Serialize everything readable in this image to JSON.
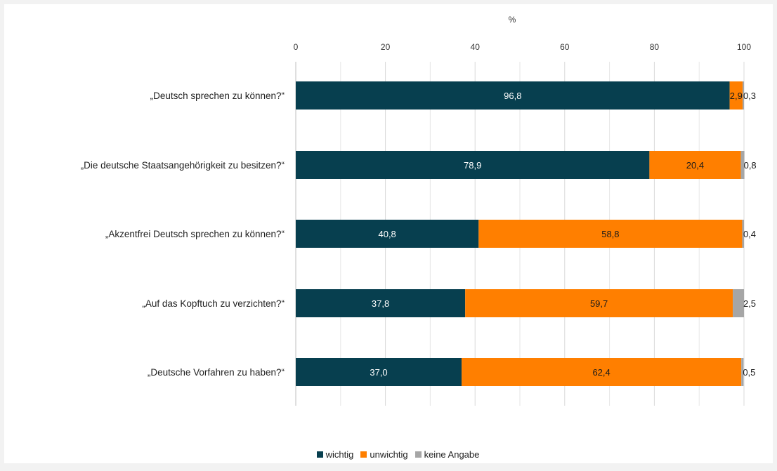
{
  "chart_data": {
    "type": "bar",
    "orientation": "horizontal",
    "stacked": true,
    "axis_title": "%",
    "xlim": [
      0,
      100
    ],
    "ticks": [
      "0",
      "20",
      "40",
      "60",
      "80",
      "100"
    ],
    "tick_values": [
      0,
      20,
      40,
      60,
      80,
      100
    ],
    "grid": true,
    "legend_position": "bottom",
    "categories": [
      "„Deutsch sprechen zu können?“",
      "„Die deutsche Staatsangehörigkeit zu besitzen?“",
      "„Akzentfrei Deutsch sprechen zu können?“",
      "„Auf das Kopftuch zu verzichten?“",
      "„Deutsche Vorfahren zu haben?“"
    ],
    "series": [
      {
        "name": "wichtig",
        "color": "#073f4f",
        "values": [
          96.8,
          78.9,
          40.8,
          37.8,
          37.0
        ],
        "labels": [
          "96,8",
          "78,9",
          "40,8",
          "37,8",
          "37,0"
        ]
      },
      {
        "name": "unwichtig",
        "color": "#ff7f00",
        "values": [
          2.9,
          20.4,
          58.8,
          59.7,
          62.4
        ],
        "labels": [
          "2,9",
          "20,4",
          "58,8",
          "59,7",
          "62,4"
        ]
      },
      {
        "name": "keine Angabe",
        "color": "#a6a6a6",
        "values": [
          0.3,
          0.8,
          0.4,
          2.5,
          0.5
        ],
        "labels": [
          "0,3",
          "0,8",
          "0,4",
          "2,5",
          "0,5"
        ]
      }
    ]
  }
}
